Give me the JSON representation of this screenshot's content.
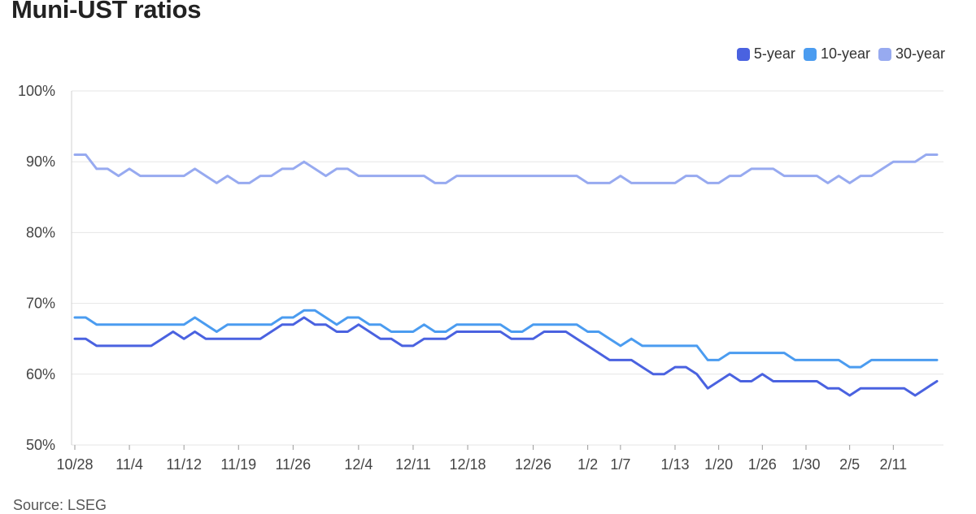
{
  "title": "Muni-UST ratios",
  "source": "Source: LSEG",
  "chart_data": {
    "type": "line",
    "title": "Muni-UST ratios",
    "xlabel": "",
    "ylabel": "",
    "ylim": [
      50,
      100
    ],
    "yticks": [
      "50%",
      "60%",
      "70%",
      "80%",
      "90%",
      "100%"
    ],
    "xticks": [
      "10/28",
      "11/4",
      "11/12",
      "11/19",
      "11/26",
      "12/4",
      "12/11",
      "12/18",
      "12/26",
      "1/2",
      "1/7",
      "1/13",
      "1/20",
      "1/26",
      "1/30",
      "2/5",
      "2/11"
    ],
    "xtick_index": [
      0,
      5,
      10,
      15,
      20,
      26,
      31,
      36,
      42,
      47,
      50,
      55,
      59,
      63,
      67,
      71,
      75
    ],
    "grid": "horizontal",
    "legend_position": "top-right",
    "series": [
      {
        "name": "5-year",
        "color": "#4a62e0",
        "values": [
          65,
          65,
          64,
          64,
          64,
          64,
          64,
          64,
          65,
          66,
          65,
          66,
          65,
          65,
          65,
          65,
          65,
          65,
          66,
          67,
          67,
          68,
          67,
          67,
          66,
          66,
          67,
          66,
          65,
          65,
          64,
          64,
          65,
          65,
          65,
          66,
          66,
          66,
          66,
          66,
          65,
          65,
          65,
          66,
          66,
          66,
          65,
          64,
          63,
          62,
          62,
          62,
          61,
          60,
          60,
          61,
          61,
          60,
          58,
          59,
          60,
          59,
          59,
          60,
          59,
          59,
          59,
          59,
          59,
          58,
          58,
          57,
          58,
          58,
          58,
          58,
          58,
          57,
          58,
          59
        ]
      },
      {
        "name": "10-year",
        "color": "#4b9cf0",
        "values": [
          68,
          68,
          67,
          67,
          67,
          67,
          67,
          67,
          67,
          67,
          67,
          68,
          67,
          66,
          67,
          67,
          67,
          67,
          67,
          68,
          68,
          69,
          69,
          68,
          67,
          68,
          68,
          67,
          67,
          66,
          66,
          66,
          67,
          66,
          66,
          67,
          67,
          67,
          67,
          67,
          66,
          66,
          67,
          67,
          67,
          67,
          67,
          66,
          66,
          65,
          64,
          65,
          64,
          64,
          64,
          64,
          64,
          64,
          62,
          62,
          63,
          63,
          63,
          63,
          63,
          63,
          62,
          62,
          62,
          62,
          62,
          61,
          61,
          62,
          62,
          62,
          62,
          62,
          62,
          62
        ]
      },
      {
        "name": "30-year",
        "color": "#97aaf0",
        "values": [
          91,
          91,
          89,
          89,
          88,
          89,
          88,
          88,
          88,
          88,
          88,
          89,
          88,
          87,
          88,
          87,
          87,
          88,
          88,
          89,
          89,
          90,
          89,
          88,
          89,
          89,
          88,
          88,
          88,
          88,
          88,
          88,
          88,
          87,
          87,
          88,
          88,
          88,
          88,
          88,
          88,
          88,
          88,
          88,
          88,
          88,
          88,
          87,
          87,
          87,
          88,
          87,
          87,
          87,
          87,
          87,
          88,
          88,
          87,
          87,
          88,
          88,
          89,
          89,
          89,
          88,
          88,
          88,
          88,
          87,
          88,
          87,
          88,
          88,
          89,
          90,
          90,
          90,
          91,
          91
        ]
      }
    ]
  }
}
